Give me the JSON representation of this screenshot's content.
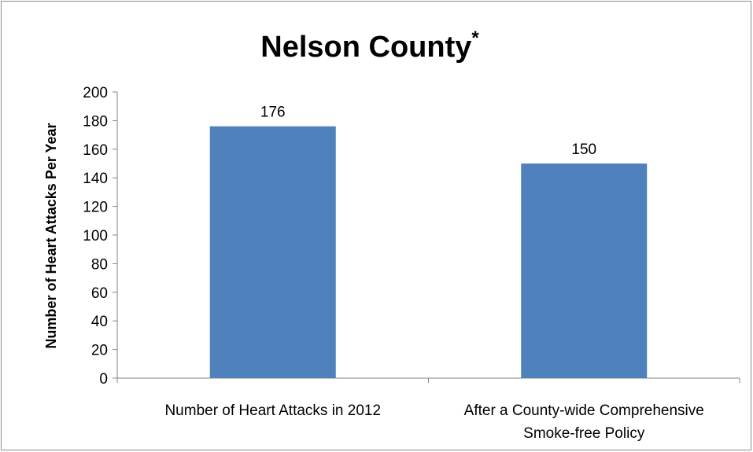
{
  "chart_data": {
    "type": "bar",
    "title": "Nelson County",
    "title_superscript": "*",
    "xlabel": "",
    "ylabel": "Number of Heart Attacks Per Year",
    "categories": [
      [
        "Number of Heart Attacks in 2012"
      ],
      [
        "After a County-wide Comprehensive",
        "Smoke-free Policy"
      ]
    ],
    "values": [
      176,
      150
    ],
    "data_labels": [
      "176",
      "150"
    ],
    "ylim": [
      0,
      200
    ],
    "yticks": [
      "0",
      "20",
      "40",
      "60",
      "80",
      "100",
      "120",
      "140",
      "160",
      "180",
      "200"
    ],
    "grid": false,
    "legend": "none",
    "bar_color": "#4f81bd"
  }
}
